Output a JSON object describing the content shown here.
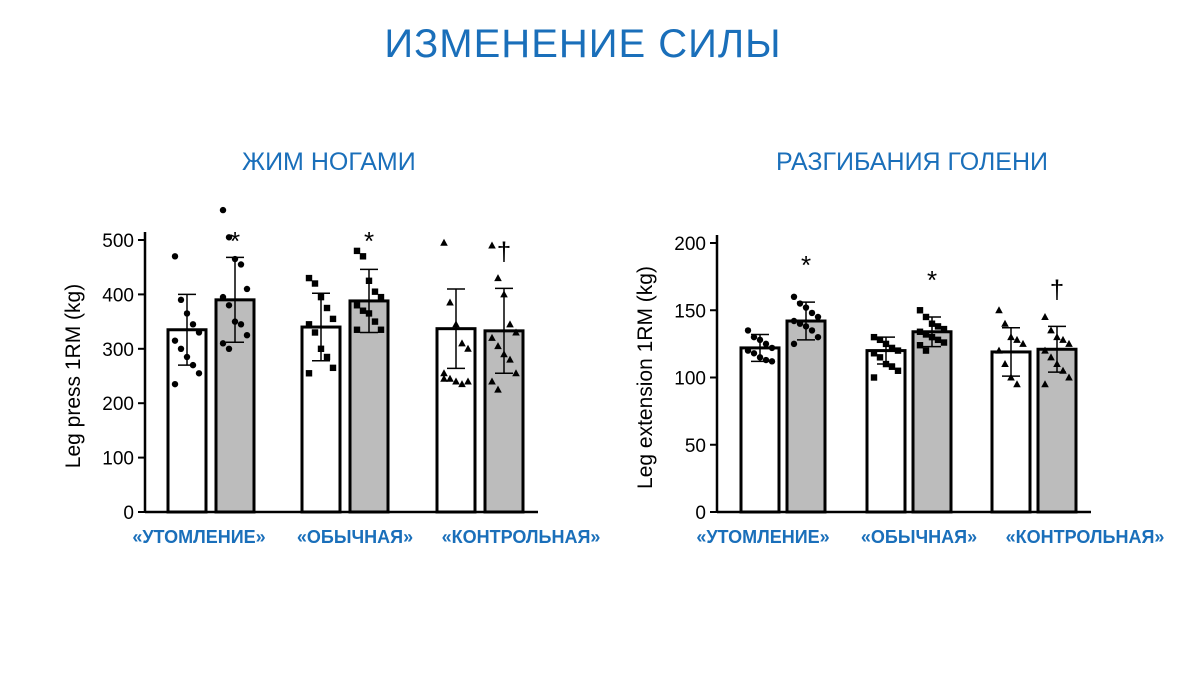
{
  "slide": {
    "title": "ИЗМЕНЕНИЕ СИЛЫ"
  },
  "chart_data": [
    {
      "type": "bar",
      "title": "ЖИМ НОГАМИ",
      "ylabel": "Leg press 1RM (kg)",
      "ylim": [
        0,
        500
      ],
      "yticks": [
        0,
        100,
        200,
        300,
        400,
        500
      ],
      "categories": [
        "«УТОМЛЕНИЕ»",
        "«ОБЫЧНАЯ»",
        "«КОНТРОЛЬНАЯ»"
      ],
      "series": [
        {
          "color": "#ffffff",
          "values": [
            335,
            340,
            337
          ],
          "errors": [
            65,
            62,
            73
          ]
        },
        {
          "color": "#bcbcbc",
          "values": [
            390,
            388,
            333
          ],
          "errors": [
            78,
            58,
            78
          ]
        }
      ],
      "marker_shapes": [
        "circle",
        "square",
        "triangle"
      ],
      "individual_points": [
        [
          [
            470,
            390,
            365,
            345,
            330,
            315,
            300,
            285,
            270,
            255,
            235
          ],
          [
            555,
            505,
            465,
            455,
            410,
            395,
            380,
            350,
            345,
            325,
            310,
            300
          ]
        ],
        [
          [
            430,
            420,
            395,
            375,
            355,
            345,
            330,
            300,
            285,
            265,
            255
          ],
          [
            480,
            470,
            425,
            405,
            395,
            380,
            370,
            365,
            350,
            335,
            335
          ]
        ],
        [
          [
            495,
            385,
            345,
            310,
            300,
            255,
            245,
            240,
            235,
            240,
            245
          ],
          [
            490,
            430,
            400,
            345,
            330,
            320,
            305,
            290,
            280,
            255,
            240,
            225
          ]
        ]
      ],
      "significance": [
        "*",
        "*",
        "†"
      ]
    },
    {
      "type": "bar",
      "title": "РАЗГИБАНИЯ ГОЛЕНИ",
      "ylabel": "Leg extension 1RM (kg)",
      "ylim": [
        0,
        200
      ],
      "yticks": [
        0,
        50,
        100,
        150,
        200
      ],
      "categories": [
        "«УТОМЛЕНИЕ»",
        "«ОБЫЧНАЯ»",
        "«КОНТРОЛЬНАЯ»"
      ],
      "series": [
        {
          "color": "#ffffff",
          "values": [
            122,
            120,
            119
          ],
          "errors": [
            10,
            10,
            18
          ]
        },
        {
          "color": "#bcbcbc",
          "values": [
            142,
            134,
            121
          ],
          "errors": [
            14,
            11,
            17
          ]
        }
      ],
      "marker_shapes": [
        "circle",
        "square",
        "triangle"
      ],
      "individual_points": [
        [
          [
            135,
            130,
            128,
            125,
            122,
            120,
            118,
            115,
            113,
            112
          ],
          [
            160,
            155,
            152,
            148,
            145,
            142,
            140,
            138,
            135,
            130,
            125
          ]
        ],
        [
          [
            130,
            128,
            125,
            122,
            120,
            118,
            115,
            110,
            108,
            105,
            100
          ],
          [
            150,
            145,
            140,
            138,
            136,
            134,
            132,
            130,
            128,
            126,
            124,
            120
          ]
        ],
        [
          [
            150,
            140,
            130,
            128,
            125,
            120,
            110,
            100,
            95
          ],
          [
            145,
            135,
            130,
            128,
            125,
            120,
            115,
            110,
            105,
            100,
            95
          ]
        ]
      ],
      "significance": [
        "*",
        "*",
        "†"
      ]
    }
  ]
}
